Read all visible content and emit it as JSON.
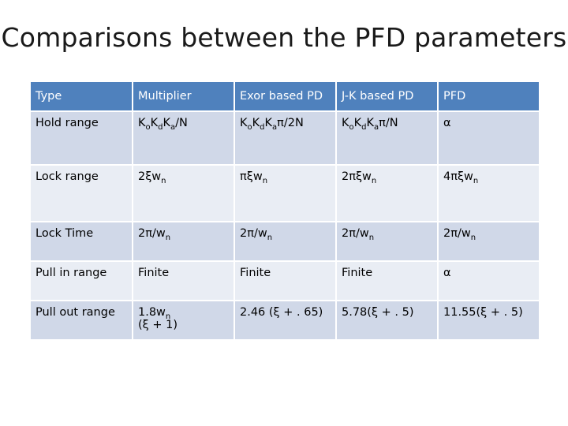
{
  "title": "Comparisons between the PFD parameters",
  "columns": [
    "Type",
    "Multiplier",
    "Exor based PD",
    "J-K based PD",
    "PFD"
  ],
  "rows": [
    {
      "label": "Hold range",
      "cells": [
        [
          {
            "t": "K"
          },
          {
            "s": "o"
          },
          {
            "t": "K"
          },
          {
            "s": "d"
          },
          {
            "t": "K"
          },
          {
            "s": "a"
          },
          {
            "t": "/N"
          }
        ],
        [
          {
            "t": "K"
          },
          {
            "s": "o"
          },
          {
            "t": "K"
          },
          {
            "s": "d"
          },
          {
            "t": "K"
          },
          {
            "s": "a"
          },
          {
            "t": "π/2N"
          }
        ],
        [
          {
            "t": "K"
          },
          {
            "s": "o"
          },
          {
            "t": "K"
          },
          {
            "s": "d"
          },
          {
            "t": "K"
          },
          {
            "s": "a"
          },
          {
            "t": "π/N"
          }
        ],
        [
          {
            "t": "α"
          }
        ]
      ]
    },
    {
      "label": "Lock range",
      "cells": [
        [
          {
            "t": "2ξw"
          },
          {
            "s": "n"
          }
        ],
        [
          {
            "t": "πξw"
          },
          {
            "s": "n"
          }
        ],
        [
          {
            "t": "2πξw"
          },
          {
            "s": "n"
          }
        ],
        [
          {
            "t": "4πξw"
          },
          {
            "s": "n"
          }
        ]
      ]
    },
    {
      "label": "Lock Time",
      "cells": [
        [
          {
            "t": "2π/w"
          },
          {
            "s": "n"
          }
        ],
        [
          {
            "t": "2π/w"
          },
          {
            "s": "n"
          }
        ],
        [
          {
            "t": "2π/w"
          },
          {
            "s": "n"
          }
        ],
        [
          {
            "t": "2π/w"
          },
          {
            "s": "n"
          }
        ]
      ]
    },
    {
      "label": "Pull in range",
      "cells": [
        [
          {
            "t": "Finite"
          }
        ],
        [
          {
            "t": "Finite"
          }
        ],
        [
          {
            "t": "Finite"
          }
        ],
        [
          {
            "t": "α"
          }
        ]
      ]
    },
    {
      "label": "Pull out range",
      "cells": [
        [
          {
            "t": "1.8w"
          },
          {
            "s": "n"
          },
          {
            "br": true
          },
          {
            "t": "(ξ + 1)"
          }
        ],
        [
          {
            "t": "2.46 (ξ + . 65)"
          }
        ],
        [
          {
            "t": "5.78(ξ + . 5)"
          }
        ],
        [
          {
            "t": "11.55(ξ + . 5)"
          }
        ]
      ]
    }
  ],
  "colors": {
    "header_bg": "#4f81bd",
    "row_odd_bg": "#d0d8e8",
    "row_even_bg": "#e9edf4"
  }
}
